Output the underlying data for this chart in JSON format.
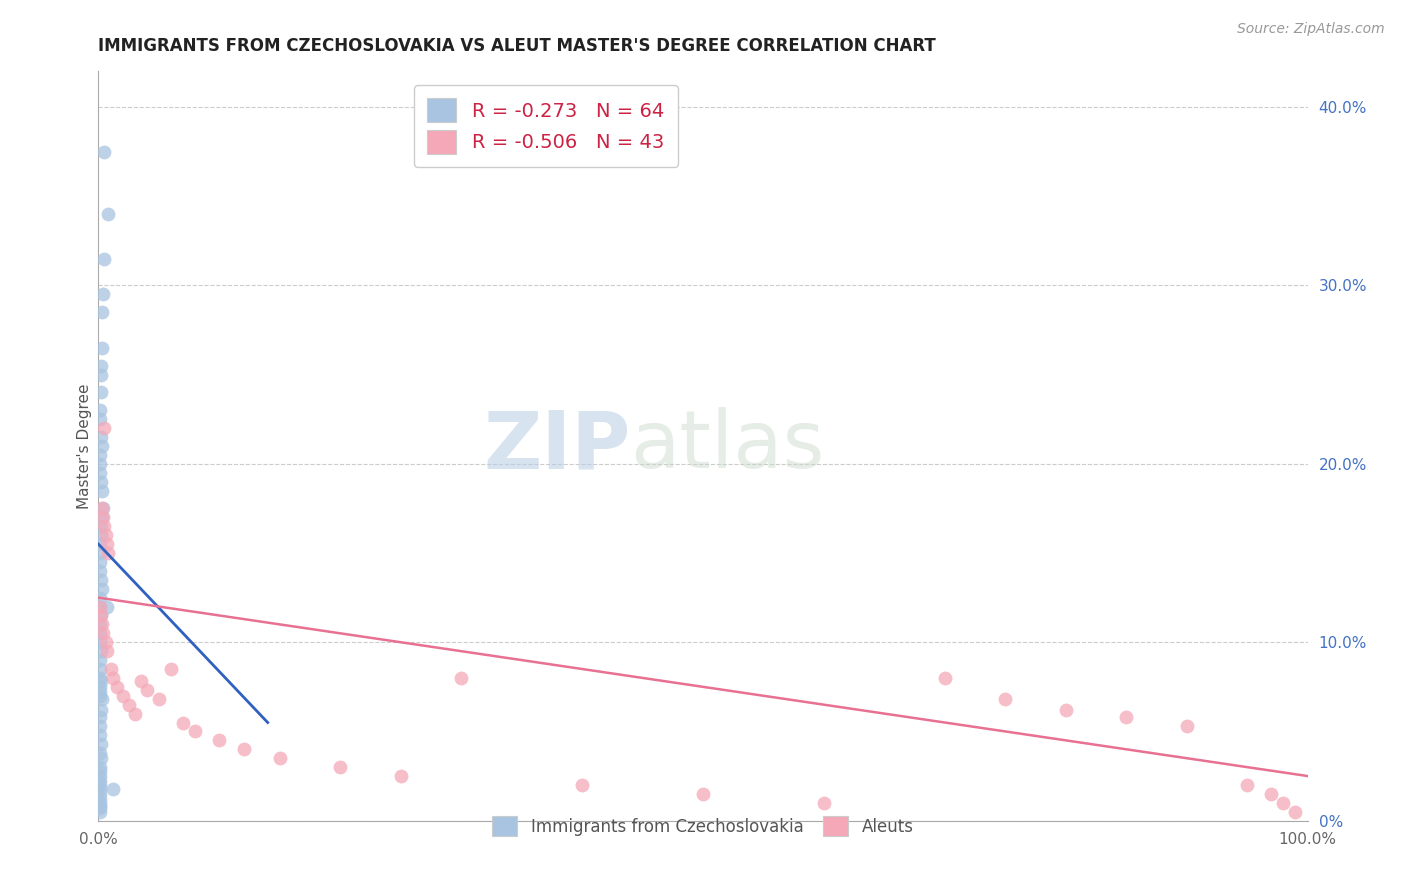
{
  "title": "IMMIGRANTS FROM CZECHOSLOVAKIA VS ALEUT MASTER'S DEGREE CORRELATION CHART",
  "source": "Source: ZipAtlas.com",
  "ylabel": "Master's Degree",
  "right_ytick_labels": [
    "0%",
    "10.0%",
    "20.0%",
    "30.0%",
    "40.0%"
  ],
  "right_ytick_vals": [
    0.0,
    0.1,
    0.2,
    0.3,
    0.4
  ],
  "xlim": [
    0.0,
    1.0
  ],
  "ylim": [
    0.0,
    0.42
  ],
  "legend1_label": "R = -0.273   N = 64",
  "legend2_label": "R = -0.506   N = 43",
  "legend1_color": "#a8c4e0",
  "legend2_color": "#f4a8b8",
  "blue_line_color": "#3060c0",
  "pink_line_color": "#e87090",
  "watermark_zip": "ZIP",
  "watermark_atlas": "atlas",
  "blue_scatter_x": [
    0.005,
    0.008,
    0.005,
    0.004,
    0.003,
    0.003,
    0.002,
    0.002,
    0.002,
    0.001,
    0.001,
    0.002,
    0.003,
    0.001,
    0.001,
    0.001,
    0.002,
    0.003,
    0.004,
    0.003,
    0.002,
    0.002,
    0.001,
    0.001,
    0.001,
    0.001,
    0.002,
    0.003,
    0.001,
    0.001,
    0.002,
    0.001,
    0.001,
    0.001,
    0.002,
    0.001,
    0.001,
    0.001,
    0.001,
    0.001,
    0.007,
    0.002,
    0.001,
    0.003,
    0.002,
    0.001,
    0.001,
    0.001,
    0.002,
    0.001,
    0.002,
    0.001,
    0.001,
    0.001,
    0.001,
    0.001,
    0.001,
    0.001,
    0.001,
    0.001,
    0.001,
    0.001,
    0.001,
    0.012
  ],
  "blue_scatter_y": [
    0.375,
    0.34,
    0.315,
    0.295,
    0.285,
    0.265,
    0.255,
    0.25,
    0.24,
    0.23,
    0.225,
    0.215,
    0.21,
    0.205,
    0.2,
    0.195,
    0.19,
    0.185,
    0.175,
    0.17,
    0.165,
    0.16,
    0.155,
    0.15,
    0.145,
    0.14,
    0.135,
    0.13,
    0.125,
    0.12,
    0.115,
    0.11,
    0.105,
    0.1,
    0.095,
    0.09,
    0.085,
    0.08,
    0.075,
    0.07,
    0.12,
    0.078,
    0.072,
    0.068,
    0.062,
    0.058,
    0.053,
    0.048,
    0.043,
    0.038,
    0.035,
    0.03,
    0.028,
    0.025,
    0.022,
    0.02,
    0.018,
    0.015,
    0.012,
    0.01,
    0.008,
    0.007,
    0.005,
    0.018
  ],
  "pink_scatter_x": [
    0.001,
    0.002,
    0.003,
    0.004,
    0.005,
    0.006,
    0.007,
    0.003,
    0.004,
    0.005,
    0.006,
    0.007,
    0.008,
    0.01,
    0.012,
    0.015,
    0.02,
    0.025,
    0.03,
    0.035,
    0.04,
    0.05,
    0.06,
    0.07,
    0.08,
    0.1,
    0.12,
    0.15,
    0.2,
    0.25,
    0.3,
    0.4,
    0.5,
    0.6,
    0.7,
    0.75,
    0.8,
    0.85,
    0.9,
    0.95,
    0.97,
    0.98,
    0.99
  ],
  "pink_scatter_y": [
    0.12,
    0.115,
    0.11,
    0.105,
    0.22,
    0.1,
    0.095,
    0.175,
    0.17,
    0.165,
    0.16,
    0.155,
    0.15,
    0.085,
    0.08,
    0.075,
    0.07,
    0.065,
    0.06,
    0.078,
    0.073,
    0.068,
    0.085,
    0.055,
    0.05,
    0.045,
    0.04,
    0.035,
    0.03,
    0.025,
    0.08,
    0.02,
    0.015,
    0.01,
    0.08,
    0.068,
    0.062,
    0.058,
    0.053,
    0.02,
    0.015,
    0.01,
    0.005
  ],
  "blue_line_x": [
    0.0,
    0.14
  ],
  "blue_line_y_start": 0.155,
  "blue_line_y_end": 0.055,
  "pink_line_x": [
    0.0,
    1.0
  ],
  "pink_line_y_start": 0.125,
  "pink_line_y_end": 0.025
}
